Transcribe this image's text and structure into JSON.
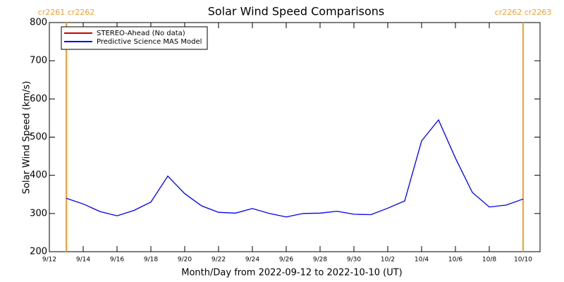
{
  "chart_data": {
    "type": "line",
    "title": "Solar Wind Speed Comparisons",
    "x_label": "Month/Day from 2022-09-12 to 2022-10-10 (UT)",
    "y_label": "Solar Wind Speed (km/s)",
    "x": [
      "2022-09-13",
      "2022-09-14",
      "2022-09-15",
      "2022-09-16",
      "2022-09-17",
      "2022-09-18",
      "2022-09-19",
      "2022-09-20",
      "2022-09-21",
      "2022-09-22",
      "2022-09-23",
      "2022-09-24",
      "2022-09-25",
      "2022-09-26",
      "2022-09-27",
      "2022-09-28",
      "2022-09-29",
      "2022-09-30",
      "2022-10-01",
      "2022-10-02",
      "2022-10-03",
      "2022-10-04",
      "2022-10-05",
      "2022-10-06",
      "2022-10-07",
      "2022-10-08",
      "2022-10-09",
      "2022-10-10"
    ],
    "series": [
      {
        "name": "STEREO-Ahead (No data)",
        "color": "#cc0000",
        "values": [
          null,
          null,
          null,
          null,
          null,
          null,
          null,
          null,
          null,
          null,
          null,
          null,
          null,
          null,
          null,
          null,
          null,
          null,
          null,
          null,
          null,
          null,
          null,
          null,
          null,
          null,
          null,
          null
        ]
      },
      {
        "name": "Predictive Science MAS Model",
        "color": "#0000ee",
        "values": [
          340,
          325,
          305,
          294,
          308,
          330,
          398,
          352,
          320,
          303,
          301,
          313,
          300,
          291,
          300,
          301,
          306,
          298,
          297,
          314,
          333,
          490,
          545,
          445,
          355,
          317,
          322,
          338
        ]
      }
    ],
    "xlim": [
      "2022-09-12",
      "2022-10-11"
    ],
    "xticks": [
      {
        "value": "2022-09-12",
        "label": "9/12"
      },
      {
        "value": "2022-09-14",
        "label": "9/14"
      },
      {
        "value": "2022-09-16",
        "label": "9/16"
      },
      {
        "value": "2022-09-18",
        "label": "9/18"
      },
      {
        "value": "2022-09-20",
        "label": "9/20"
      },
      {
        "value": "2022-09-22",
        "label": "9/22"
      },
      {
        "value": "2022-09-24",
        "label": "9/24"
      },
      {
        "value": "2022-09-26",
        "label": "9/26"
      },
      {
        "value": "2022-09-28",
        "label": "9/28"
      },
      {
        "value": "2022-09-30",
        "label": "9/30"
      },
      {
        "value": "2022-10-02",
        "label": "10/2"
      },
      {
        "value": "2022-10-04",
        "label": "10/4"
      },
      {
        "value": "2022-10-06",
        "label": "10/6"
      },
      {
        "value": "2022-10-08",
        "label": "10/8"
      },
      {
        "value": "2022-10-10",
        "label": "10/10"
      }
    ],
    "ylim": [
      200,
      800
    ],
    "yticks": [
      200,
      300,
      400,
      500,
      600,
      700,
      800
    ],
    "annotations": [
      {
        "x": "2022-09-13",
        "label": "cr2261 cr2262",
        "color": "#f0a030"
      },
      {
        "x": "2022-10-10",
        "label": "cr2262 cr2263",
        "color": "#f0a030"
      }
    ],
    "legend": "top-left"
  }
}
